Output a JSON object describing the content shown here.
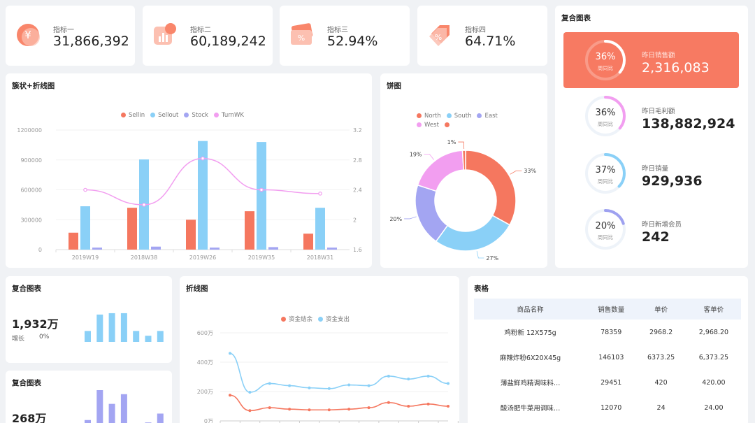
{
  "kpis": [
    {
      "label": "指标一",
      "value": "31,866,392",
      "icon": "yen-icon",
      "color": "#f9866b"
    },
    {
      "label": "指标二",
      "value": "60,189,242",
      "icon": "bar-chart-icon",
      "color": "#f9866b"
    },
    {
      "label": "指标三",
      "value": "52.94%",
      "icon": "percent-ticket-icon",
      "color": "#f9866b"
    },
    {
      "label": "指标四",
      "value": "64.71%",
      "icon": "percent-tag-icon",
      "color": "#f9866b"
    }
  ],
  "composite": {
    "title": "复合图表",
    "rows": [
      {
        "pct": "36%",
        "fraction": 0.36,
        "sub": "周同比",
        "label": "昨日销售额",
        "value": "2,316,083",
        "ring_color": "#ffffff"
      },
      {
        "pct": "36%",
        "fraction": 0.36,
        "sub": "周同比",
        "label": "昨日毛利额",
        "value": "138,882,924",
        "ring_color": "#f29ef0"
      },
      {
        "pct": "37%",
        "fraction": 0.37,
        "sub": "周同比",
        "label": "昨日销量",
        "value": "929,936",
        "ring_color": "#8ad0f7"
      },
      {
        "pct": "20%",
        "fraction": 0.2,
        "sub": "周同比",
        "label": "昨日新增会员",
        "value": "242",
        "ring_color": "#9ea1f0"
      }
    ]
  },
  "bar_line": {
    "title": "簇状+折线图",
    "chart_data": {
      "type": "bar",
      "categories": [
        "2019W19",
        "2018W38",
        "2019W26",
        "2019W35",
        "2018W31"
      ],
      "series": [
        {
          "name": "Sellin",
          "type": "bar",
          "color": "#f5775f",
          "values": [
            170000,
            420000,
            300000,
            385000,
            160000
          ]
        },
        {
          "name": "Sellout",
          "type": "bar",
          "color": "#8ad0f7",
          "values": [
            435000,
            905000,
            1090000,
            1080000,
            420000
          ]
        },
        {
          "name": "Stock",
          "type": "bar",
          "color": "#a3a5f2",
          "values": [
            20000,
            30000,
            20000,
            25000,
            20000
          ]
        },
        {
          "name": "TurnWK",
          "type": "line",
          "axis": "right",
          "color": "#f29ef0",
          "values": [
            2.4,
            2.2,
            2.82,
            2.4,
            2.35
          ]
        }
      ],
      "y_ticks": [
        "1200000",
        "900000",
        "600000",
        "300000",
        "0"
      ],
      "y2_ticks": [
        "3.2",
        "2.8",
        "2.4",
        "2",
        "1.6"
      ],
      "ylim": [
        0,
        1200000
      ],
      "y2lim": [
        1.6,
        3.2
      ]
    }
  },
  "pie": {
    "title": "饼图",
    "chart_data": {
      "type": "pie",
      "legend": [
        {
          "name": "North",
          "color": "#f5775f"
        },
        {
          "name": "South",
          "color": "#8ad0f7"
        },
        {
          "name": "East",
          "color": "#a3a5f2"
        },
        {
          "name": "West",
          "color": "#f29ef0"
        },
        {
          "name": "",
          "color": "#f5775f"
        }
      ],
      "slices": [
        {
          "name": "North",
          "value": 33,
          "label": "33%",
          "color": "#f5775f"
        },
        {
          "name": "South",
          "value": 27,
          "label": "27%",
          "color": "#8ad0f7"
        },
        {
          "name": "East",
          "value": 20,
          "label": "20%",
          "color": "#a3a5f2"
        },
        {
          "name": "West",
          "value": 19,
          "label": "19%",
          "color": "#f29ef0"
        },
        {
          "name": "",
          "value": 1,
          "label": "1%",
          "color": "#f5775f"
        }
      ]
    }
  },
  "mini1": {
    "title": "复合图表",
    "value": "1,932万",
    "growth_label": "增长",
    "growth_value": "0%",
    "chart_data": {
      "type": "bar",
      "values": [
        16,
        40,
        42,
        42,
        16,
        9,
        16
      ],
      "color": "#8ad0f7",
      "ylim": [
        0,
        45
      ]
    }
  },
  "mini2": {
    "title": "复合图表",
    "value": "268万",
    "chart_data": {
      "type": "bar",
      "values": [
        8,
        45,
        28,
        40,
        4,
        5,
        16
      ],
      "color": "#a3a5f2",
      "ylim": [
        0,
        45
      ]
    }
  },
  "line": {
    "title": "折线图",
    "chart_data": {
      "type": "line",
      "series": [
        {
          "name": "资金结余",
          "color": "#f5775f",
          "values": [
            175,
            70,
            90,
            80,
            75,
            75,
            80,
            90,
            125,
            100,
            115,
            100
          ]
        },
        {
          "name": "资金支出",
          "color": "#8ad0f7",
          "values": [
            460,
            195,
            255,
            240,
            225,
            220,
            245,
            240,
            305,
            285,
            305,
            255
          ]
        }
      ],
      "y_ticks": [
        "600万",
        "400万",
        "200万",
        "0万"
      ],
      "ylim": [
        0,
        600
      ]
    }
  },
  "table": {
    "title": "表格",
    "headers": [
      "商品名称",
      "销售数量",
      "单价",
      "客单价"
    ],
    "rows": [
      [
        "鸡粉新 12X575g",
        "78359",
        "2968.2",
        "2,968.20"
      ],
      [
        "麻辣炸粉6X20X45g",
        "146103",
        "6373.25",
        "6,373.25"
      ],
      [
        "薄盐鲜鸡精调味料…",
        "29451",
        "420",
        "420.00"
      ],
      [
        "酸汤肥牛菜用调味…",
        "12070",
        "24",
        "24.00"
      ]
    ]
  }
}
